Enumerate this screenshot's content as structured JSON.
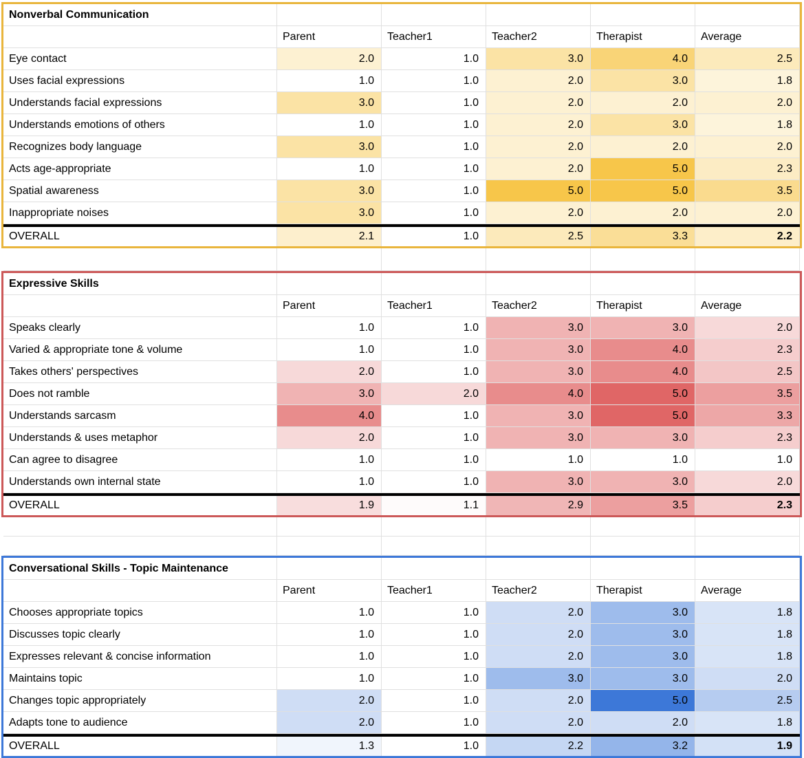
{
  "sheet": {
    "columns": [
      "Parent",
      "Teacher1",
      "Teacher2",
      "Therapist",
      "Average"
    ],
    "grid_color": "#e0e0e0",
    "divider_color": "#000000",
    "sections": [
      {
        "title": "Nonverbal Communication",
        "accent": "#E9B53C",
        "scale_max_color": "#F7C64A",
        "rows": [
          {
            "label": "Eye contact",
            "values": [
              "2.0",
              "1.0",
              "3.0",
              "4.0",
              "2.5"
            ]
          },
          {
            "label": "Uses facial expressions",
            "values": [
              "1.0",
              "1.0",
              "2.0",
              "3.0",
              "1.8"
            ]
          },
          {
            "label": "Understands facial expressions",
            "values": [
              "3.0",
              "1.0",
              "2.0",
              "2.0",
              "2.0"
            ]
          },
          {
            "label": "Understands emotions of others",
            "values": [
              "1.0",
              "1.0",
              "2.0",
              "3.0",
              "1.8"
            ]
          },
          {
            "label": "Recognizes body language",
            "values": [
              "3.0",
              "1.0",
              "2.0",
              "2.0",
              "2.0"
            ]
          },
          {
            "label": "Acts age-appropriate",
            "values": [
              "1.0",
              "1.0",
              "2.0",
              "5.0",
              "2.3"
            ]
          },
          {
            "label": "Spatial awareness",
            "values": [
              "3.0",
              "1.0",
              "5.0",
              "5.0",
              "3.5"
            ]
          },
          {
            "label": "Inappropriate noises",
            "values": [
              "3.0",
              "1.0",
              "2.0",
              "2.0",
              "2.0"
            ]
          }
        ],
        "overall": {
          "label": "OVERALL",
          "values": [
            "2.1",
            "1.0",
            "2.5",
            "3.3",
            "2.2"
          ]
        }
      },
      {
        "title": "Expressive Skills",
        "accent": "#CC5858",
        "scale_max_color": "#E06666",
        "rows": [
          {
            "label": "Speaks clearly",
            "values": [
              "1.0",
              "1.0",
              "3.0",
              "3.0",
              "2.0"
            ]
          },
          {
            "label": "Varied & appropriate tone & volume",
            "values": [
              "1.0",
              "1.0",
              "3.0",
              "4.0",
              "2.3"
            ]
          },
          {
            "label": "Takes others' perspectives",
            "values": [
              "2.0",
              "1.0",
              "3.0",
              "4.0",
              "2.5"
            ]
          },
          {
            "label": "Does not ramble",
            "values": [
              "3.0",
              "2.0",
              "4.0",
              "5.0",
              "3.5"
            ]
          },
          {
            "label": "Understands sarcasm",
            "values": [
              "4.0",
              "1.0",
              "3.0",
              "5.0",
              "3.3"
            ]
          },
          {
            "label": "Understands & uses metaphor",
            "values": [
              "2.0",
              "1.0",
              "3.0",
              "3.0",
              "2.3"
            ]
          },
          {
            "label": "Can agree to disagree",
            "values": [
              "1.0",
              "1.0",
              "1.0",
              "1.0",
              "1.0"
            ]
          },
          {
            "label": "Understands own internal state",
            "values": [
              "1.0",
              "1.0",
              "3.0",
              "3.0",
              "2.0"
            ]
          }
        ],
        "overall": {
          "label": "OVERALL",
          "values": [
            "1.9",
            "1.1",
            "2.9",
            "3.5",
            "2.3"
          ]
        }
      },
      {
        "title": "Conversational Skills - Topic Maintenance",
        "accent": "#3D78D8",
        "scale_max_color": "#3D78D8",
        "rows": [
          {
            "label": "Chooses appropriate topics",
            "values": [
              "1.0",
              "1.0",
              "2.0",
              "3.0",
              "1.8"
            ]
          },
          {
            "label": "Discusses topic clearly",
            "values": [
              "1.0",
              "1.0",
              "2.0",
              "3.0",
              "1.8"
            ]
          },
          {
            "label": "Expresses relevant & concise information",
            "values": [
              "1.0",
              "1.0",
              "2.0",
              "3.0",
              "1.8"
            ]
          },
          {
            "label": "Maintains topic",
            "values": [
              "1.0",
              "1.0",
              "3.0",
              "3.0",
              "2.0"
            ]
          },
          {
            "label": "Changes topic appropriately",
            "values": [
              "2.0",
              "1.0",
              "2.0",
              "5.0",
              "2.5"
            ]
          },
          {
            "label": "Adapts tone to audience",
            "values": [
              "2.0",
              "1.0",
              "2.0",
              "2.0",
              "1.8"
            ]
          }
        ],
        "overall": {
          "label": "OVERALL",
          "values": [
            "1.3",
            "1.0",
            "2.2",
            "3.2",
            "1.9"
          ]
        }
      }
    ]
  }
}
